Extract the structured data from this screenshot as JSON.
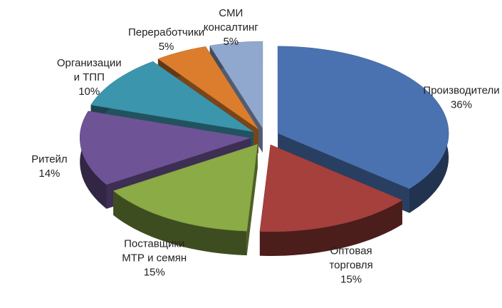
{
  "chart_data": {
    "type": "pie3d",
    "categories": [
      [
        "Производители"
      ],
      [
        "Оптовая",
        "торговля"
      ],
      [
        "Поставщики",
        "МТР и семян"
      ],
      [
        "Ритейл"
      ],
      [
        "Организации",
        "и ТПП"
      ],
      [
        "Переработчики"
      ],
      [
        "СМИ",
        "консалтинг"
      ]
    ],
    "values": [
      36,
      15,
      15,
      14,
      10,
      5,
      5
    ],
    "value_labels": [
      "36%",
      "15%",
      "15%",
      "14%",
      "10%",
      "5%",
      "5%"
    ],
    "colors": [
      "#4a72b0",
      "#a6403d",
      "#8aab45",
      "#6e5496",
      "#3b96ad",
      "#dc7d2e",
      "#91a8ce"
    ]
  }
}
